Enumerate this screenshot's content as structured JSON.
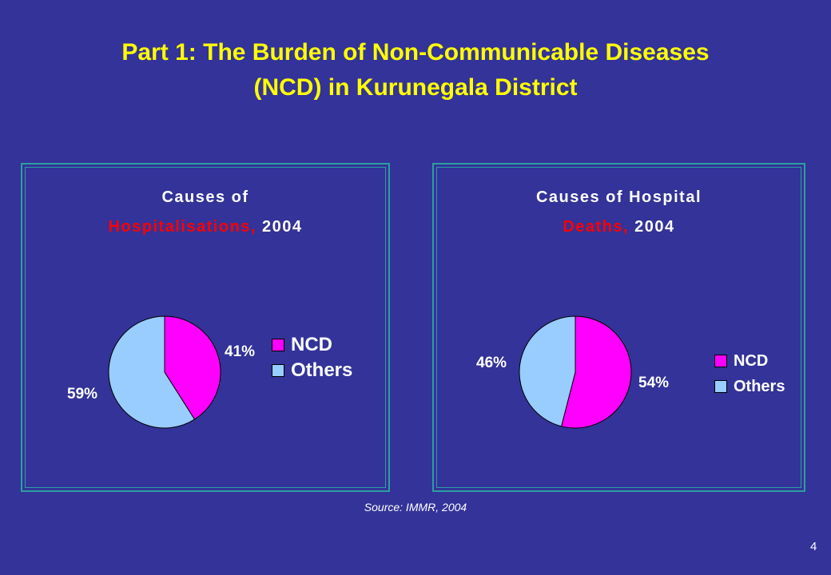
{
  "slide": {
    "title_line1": "Part 1: The Burden of Non-Communicable Diseases",
    "title_line2": "(NCD) in Kurunegala District",
    "source": "Source: IMMR, 2004",
    "page_number": "4"
  },
  "colors": {
    "background": "#333399",
    "title": "#ffff00",
    "NCD": "#ff00ff",
    "Others": "#99ccff",
    "highlight": "#ff0000"
  },
  "chart_data": [
    {
      "type": "pie",
      "title_parts": [
        "Causes of",
        "Hospitalisations,",
        "2004"
      ],
      "categories": [
        "NCD",
        "Others"
      ],
      "values": [
        41,
        59
      ],
      "labels": [
        "41%",
        "59%"
      ],
      "legend": "right"
    },
    {
      "type": "pie",
      "title_parts": [
        "Causes of Hospital",
        "Deaths,",
        "2004"
      ],
      "categories": [
        "NCD",
        "Others"
      ],
      "values": [
        54,
        46
      ],
      "labels": [
        "54%",
        "46%"
      ],
      "legend": "right"
    }
  ]
}
